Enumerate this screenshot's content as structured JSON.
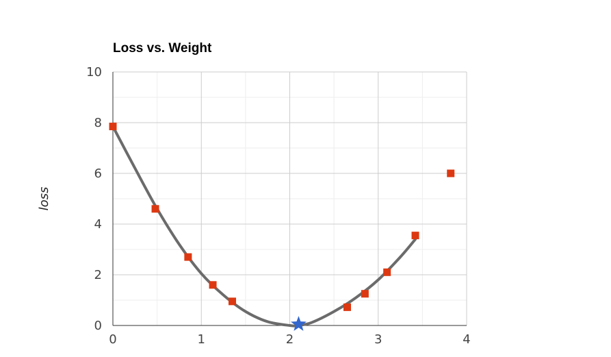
{
  "chart_data": {
    "type": "scatter",
    "title": "Loss vs. Weight",
    "xlabel": "",
    "ylabel": "loss",
    "xlim": [
      0,
      4
    ],
    "ylim": [
      0,
      10
    ],
    "x_ticks": [
      "0",
      "1",
      "2",
      "3",
      "4"
    ],
    "y_ticks": [
      "0",
      "2",
      "4",
      "6",
      "8",
      "10"
    ],
    "grid": true,
    "series": [
      {
        "type": "line",
        "color": "#6b6b6b",
        "x": [
          0,
          0.25,
          0.5,
          0.75,
          1.0,
          1.25,
          1.5,
          1.75,
          2.0,
          2.1,
          2.25,
          2.5,
          2.75,
          3.0,
          3.25,
          3.42
        ],
        "y": [
          7.85,
          6.2,
          4.6,
          3.2,
          2.05,
          1.2,
          0.55,
          0.15,
          0.0,
          0.0,
          0.12,
          0.55,
          1.1,
          1.8,
          2.7,
          3.4
        ]
      },
      {
        "type": "scatter",
        "marker": "square",
        "color": "#dc3912",
        "x": [
          0.0,
          0.48,
          0.85,
          1.13,
          1.35,
          2.65,
          2.85,
          3.1,
          3.42,
          3.82
        ],
        "y": [
          7.85,
          4.6,
          2.7,
          1.6,
          0.95,
          0.72,
          1.25,
          2.1,
          3.55,
          6.0
        ]
      },
      {
        "type": "scatter",
        "marker": "star",
        "color": "#3366cc",
        "x": [
          2.1
        ],
        "y": [
          0.05
        ]
      }
    ]
  }
}
